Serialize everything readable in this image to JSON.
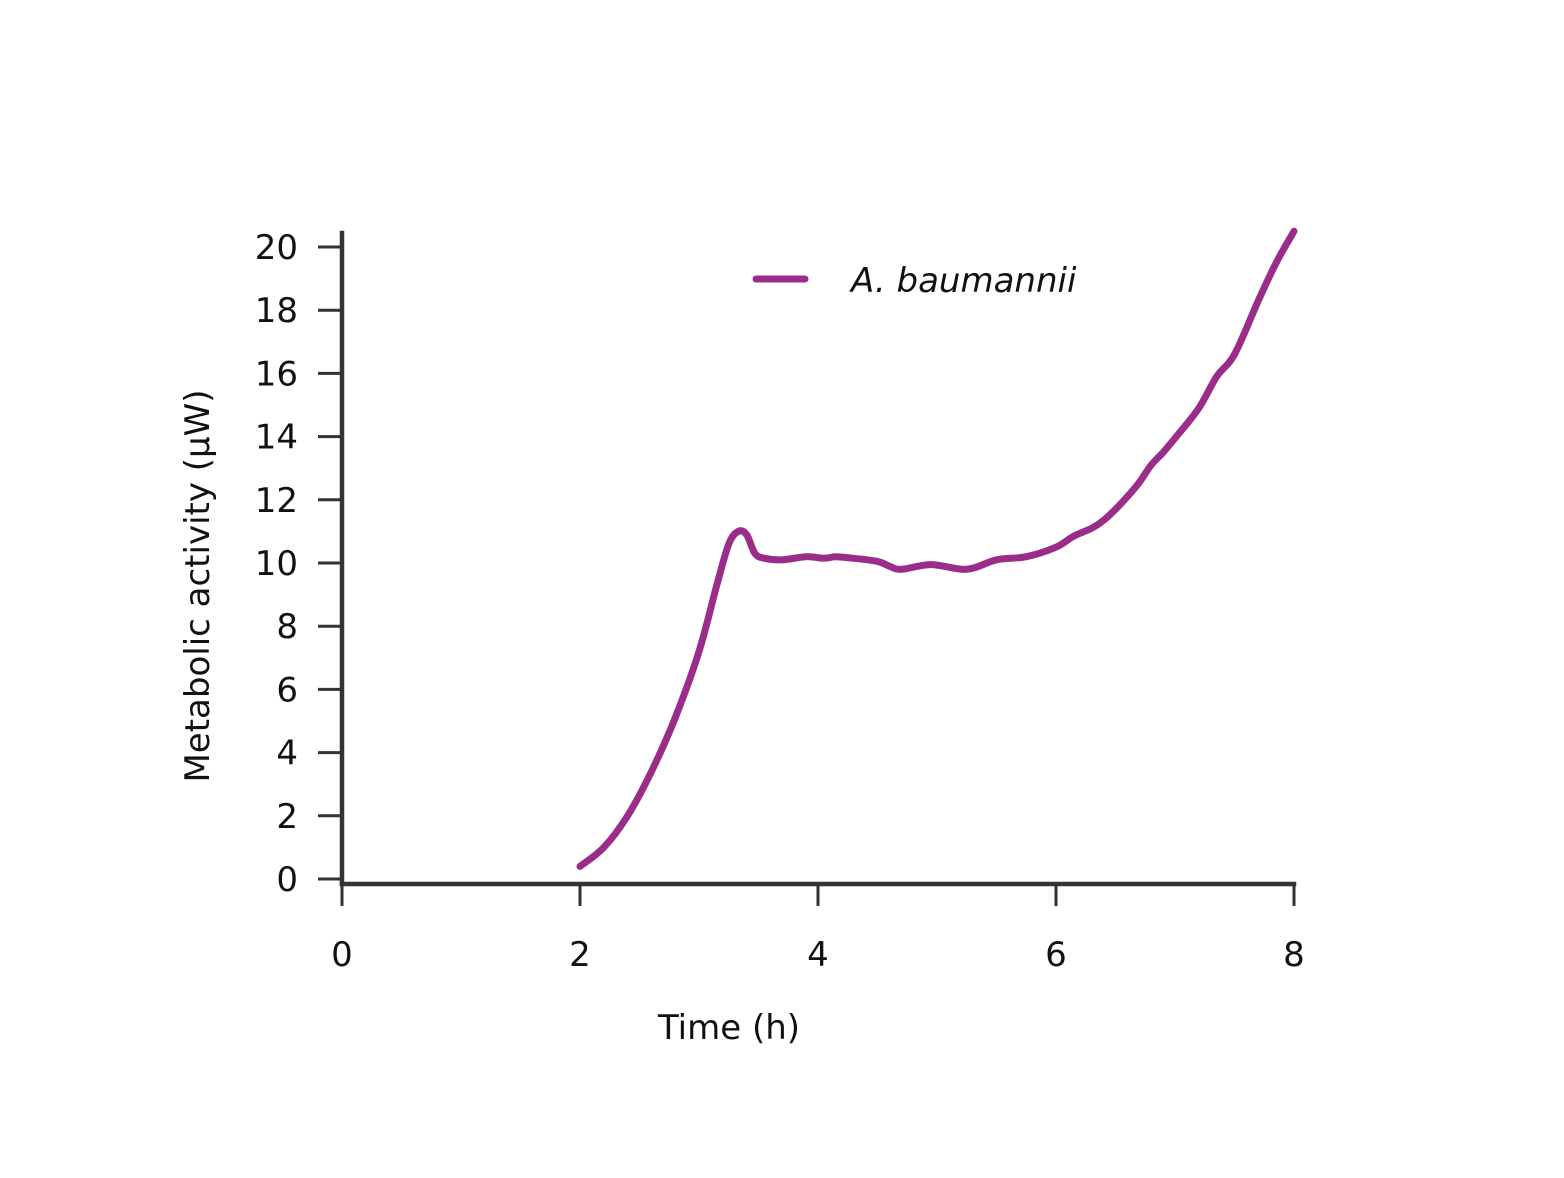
{
  "chart_data": {
    "type": "line",
    "title": "",
    "xlabel": "Time (h)",
    "ylabel": "Metabolic activity (μW)",
    "xlim": [
      0,
      8
    ],
    "ylim": [
      0,
      20.5
    ],
    "xticks": [
      0,
      2,
      4,
      6,
      8
    ],
    "yticks": [
      0,
      2,
      4,
      6,
      8,
      10,
      12,
      14,
      16,
      18,
      20
    ],
    "grid": false,
    "legend_position": "top-center",
    "series": [
      {
        "name": "A. baumannii",
        "color": "#9b2d8a",
        "x": [
          2.0,
          2.2,
          2.4,
          2.6,
          2.8,
          3.0,
          3.15,
          3.25,
          3.33,
          3.4,
          3.47,
          3.55,
          3.7,
          3.9,
          4.05,
          4.15,
          4.3,
          4.5,
          4.6,
          4.7,
          4.95,
          5.25,
          5.5,
          5.75,
          6.0,
          6.15,
          6.3,
          6.4,
          6.5,
          6.6,
          6.7,
          6.8,
          6.9,
          7.0,
          7.2,
          7.35,
          7.5,
          7.7,
          7.85,
          8.0
        ],
        "y": [
          0.4,
          1.0,
          2.0,
          3.4,
          5.1,
          7.2,
          9.3,
          10.6,
          11.0,
          10.9,
          10.3,
          10.15,
          10.1,
          10.2,
          10.15,
          10.2,
          10.15,
          10.05,
          9.9,
          9.8,
          9.95,
          9.8,
          10.1,
          10.2,
          10.5,
          10.85,
          11.1,
          11.35,
          11.7,
          12.1,
          12.55,
          13.1,
          13.5,
          13.95,
          14.9,
          15.9,
          16.6,
          18.3,
          19.5,
          20.5
        ]
      }
    ]
  }
}
